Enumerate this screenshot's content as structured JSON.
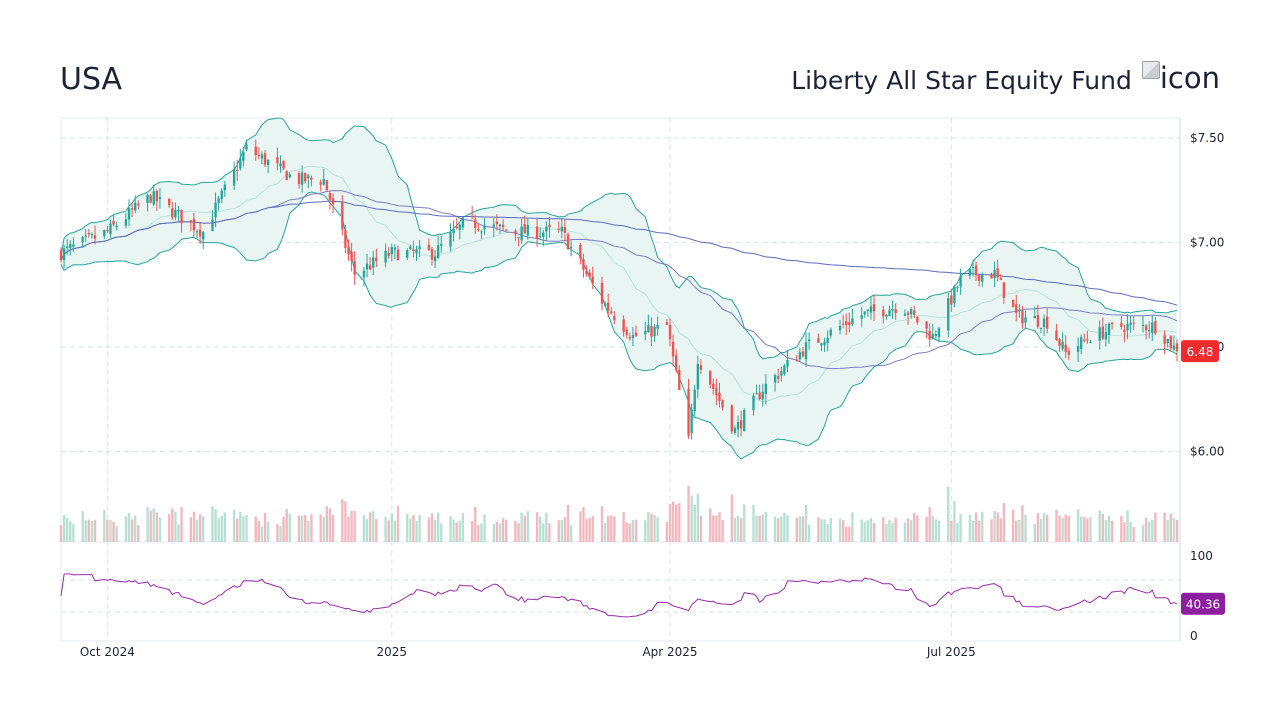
{
  "header": {
    "ticker": "USA",
    "fund_name": "Liberty All Star Equity Fund",
    "logo_alt": "icon"
  },
  "colors": {
    "up": "#26a69a",
    "down": "#ef5350",
    "band_fill": "#e8f5f3",
    "band_line": "#26a69a",
    "ma_short": "#7e7bc9",
    "ma_long": "#5c6bc0",
    "rsi_line": "#9c27b0",
    "price_badge": "#ef2b2b",
    "rsi_badge": "#8e1ea0",
    "grid": "#d7e4ea"
  },
  "chart_data": [
    {
      "type": "candlestick",
      "title": "",
      "y_ticks": [
        "$7.50",
        "$7.00",
        "$6.50",
        "$6.00"
      ],
      "ylim": [
        5.55,
        7.6
      ],
      "x_ticks": [
        "Oct 2024",
        "2025",
        "Apr 2025",
        "Jul 2025"
      ],
      "last_price": "6.48",
      "indicators": [
        "Bollinger Bands (20)",
        "MA 50",
        "MA 200"
      ],
      "close_anchors": [
        [
          "2024-09-16",
          6.95
        ],
        [
          "2024-10-01",
          7.05
        ],
        [
          "2024-10-15",
          7.22
        ],
        [
          "2024-11-01",
          7.05
        ],
        [
          "2024-11-15",
          7.45
        ],
        [
          "2024-12-01",
          7.3
        ],
        [
          "2024-12-10",
          7.3
        ],
        [
          "2024-12-20",
          6.85
        ],
        [
          "2025-01-01",
          6.95
        ],
        [
          "2025-01-15",
          6.95
        ],
        [
          "2025-01-25",
          7.1
        ],
        [
          "2025-02-10",
          7.05
        ],
        [
          "2025-02-25",
          7.05
        ],
        [
          "2025-03-10",
          6.72
        ],
        [
          "2025-03-20",
          6.55
        ],
        [
          "2025-03-31",
          6.6
        ],
        [
          "2025-04-07",
          6.05
        ],
        [
          "2025-04-10",
          6.45
        ],
        [
          "2025-04-22",
          6.1
        ],
        [
          "2025-05-01",
          6.3
        ],
        [
          "2025-05-15",
          6.5
        ],
        [
          "2025-06-01",
          6.65
        ],
        [
          "2025-06-15",
          6.7
        ],
        [
          "2025-06-25",
          6.55
        ],
        [
          "2025-07-05",
          6.85
        ],
        [
          "2025-07-15",
          6.85
        ],
        [
          "2025-07-22",
          6.65
        ],
        [
          "2025-08-01",
          6.62
        ],
        [
          "2025-08-07",
          6.47
        ],
        [
          "2025-08-15",
          6.55
        ],
        [
          "2025-08-25",
          6.6
        ],
        [
          "2025-09-05",
          6.6
        ],
        [
          "2025-09-12",
          6.48
        ]
      ]
    },
    {
      "type": "bar",
      "title": "",
      "series": [
        {
          "name": "",
          "note": "volume per day"
        }
      ]
    },
    {
      "type": "line",
      "title": "",
      "y_ticks": [
        "100",
        "0"
      ],
      "ylim": [
        0,
        100
      ],
      "last_value": "40.36",
      "reference_lines": [
        70,
        30
      ]
    }
  ]
}
